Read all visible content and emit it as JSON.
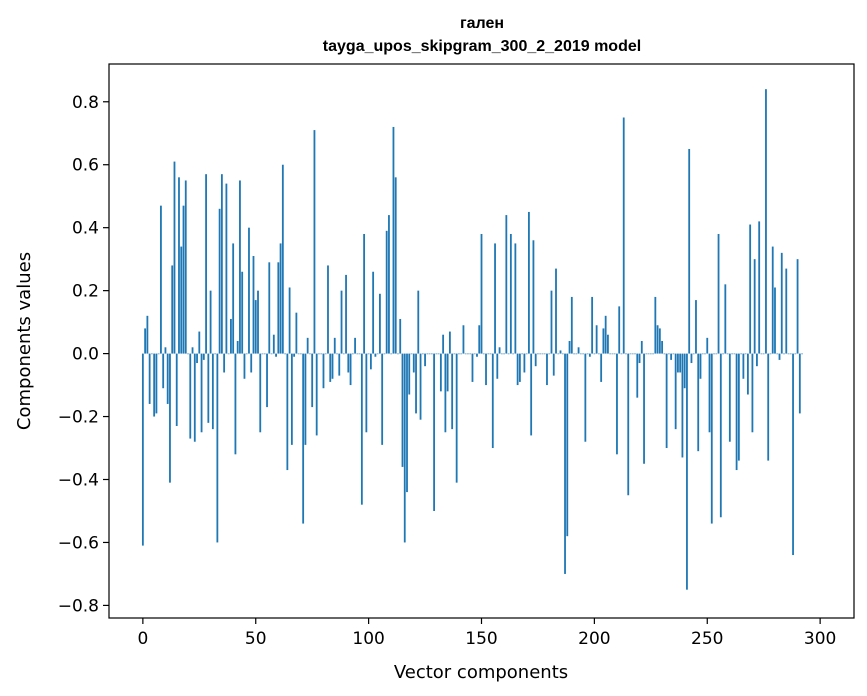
{
  "chart_data": {
    "type": "bar",
    "title": "гален",
    "subtitle": "tayga_upos_skipgram_300_2_2019 model",
    "xlabel": "Vector components",
    "ylabel": "Components values",
    "xlim": [
      -15,
      315
    ],
    "ylim": [
      -0.84,
      0.92
    ],
    "x_ticks": [
      0,
      50,
      100,
      150,
      200,
      250,
      300
    ],
    "y_ticks": [
      -0.8,
      -0.6,
      -0.4,
      -0.2,
      0.0,
      0.2,
      0.4,
      0.6,
      0.8
    ],
    "y_tick_labels": [
      "−0.8",
      "−0.6",
      "−0.4",
      "−0.2",
      "0.0",
      "0.2",
      "0.4",
      "0.6",
      "0.8"
    ],
    "bar_color": "#1f77b4",
    "grid": false,
    "values": [
      -0.61,
      0.08,
      0.12,
      -0.16,
      0.0,
      -0.2,
      -0.19,
      0.0,
      0.47,
      -0.11,
      0.02,
      -0.16,
      -0.41,
      0.28,
      0.61,
      -0.23,
      0.56,
      0.34,
      0.47,
      0.55,
      0.0,
      -0.27,
      0.02,
      -0.28,
      -0.03,
      0.07,
      -0.25,
      -0.02,
      0.57,
      -0.22,
      0.2,
      -0.24,
      0.0,
      -0.6,
      0.46,
      0.57,
      -0.06,
      0.54,
      0.0,
      0.11,
      0.35,
      -0.32,
      0.04,
      0.55,
      0.26,
      -0.08,
      0.0,
      0.4,
      -0.06,
      0.31,
      0.17,
      0.2,
      -0.25,
      0.0,
      0.0,
      -0.17,
      0.29,
      0.0,
      0.06,
      -0.01,
      0.29,
      0.35,
      0.6,
      0.0,
      -0.37,
      0.21,
      -0.29,
      -0.01,
      0.13,
      0.0,
      0.0,
      -0.54,
      -0.29,
      0.05,
      0.0,
      -0.17,
      0.71,
      -0.26,
      0.0,
      0.0,
      -0.11,
      0.0,
      0.28,
      -0.09,
      -0.08,
      0.05,
      0.0,
      -0.07,
      0.2,
      0.0,
      0.25,
      -0.06,
      -0.1,
      0.0,
      0.05,
      0.0,
      0.0,
      -0.48,
      0.38,
      -0.25,
      0.0,
      -0.05,
      0.26,
      -0.01,
      0.0,
      0.19,
      -0.29,
      0.0,
      0.39,
      0.44,
      0.0,
      0.72,
      0.56,
      0.0,
      0.11,
      -0.36,
      -0.6,
      -0.44,
      -0.13,
      0.0,
      -0.06,
      -0.19,
      0.2,
      -0.21,
      0.0,
      -0.04,
      0.0,
      0.0,
      0.0,
      -0.5,
      0.0,
      0.0,
      -0.12,
      0.06,
      -0.25,
      -0.12,
      0.07,
      -0.24,
      0.0,
      -0.41,
      0.0,
      0.0,
      0.09,
      0.0,
      0.0,
      0.0,
      -0.09,
      0.0,
      -0.01,
      0.09,
      0.38,
      0.0,
      -0.1,
      0.0,
      0.0,
      -0.3,
      0.35,
      -0.08,
      0.02,
      0.0,
      0.0,
      0.44,
      0.0,
      0.38,
      0.0,
      0.35,
      -0.1,
      -0.09,
      0.0,
      -0.06,
      0.0,
      0.45,
      -0.26,
      0.36,
      -0.04,
      0.0,
      0.0,
      0.0,
      0.0,
      -0.1,
      0.0,
      0.2,
      -0.07,
      0.27,
      0.0,
      0.01,
      0.0,
      -0.7,
      -0.58,
      0.04,
      0.18,
      0.0,
      0.0,
      0.02,
      0.0,
      0.0,
      -0.28,
      0.0,
      -0.01,
      0.18,
      0.0,
      0.09,
      0.0,
      -0.09,
      0.08,
      0.12,
      0.06,
      0.0,
      0.0,
      0.0,
      -0.32,
      0.15,
      0.0,
      0.75,
      0.0,
      -0.45,
      0.0,
      0.0,
      0.0,
      -0.14,
      -0.03,
      0.04,
      -0.35,
      0.0,
      0.0,
      0.0,
      0.0,
      0.18,
      0.09,
      0.08,
      0.04,
      0.0,
      -0.3,
      0.0,
      -0.02,
      0.0,
      -0.24,
      -0.06,
      -0.06,
      -0.33,
      -0.11,
      -0.75,
      0.65,
      -0.03,
      0.0,
      0.17,
      -0.31,
      -0.08,
      0.0,
      0.0,
      0.05,
      -0.25,
      -0.54,
      0.0,
      0.0,
      0.38,
      -0.52,
      0.0,
      0.22,
      0.0,
      -0.28,
      0.0,
      0.0,
      -0.37,
      -0.34,
      0.0,
      -0.08,
      0.0,
      -0.13,
      0.41,
      -0.25,
      0.3,
      -0.04,
      0.42,
      0.0,
      0.0,
      0.84,
      -0.34,
      0.0,
      0.34,
      0.21,
      0.0,
      -0.02,
      0.32,
      0.0,
      0.27,
      0.0,
      0.0,
      -0.64,
      0.0,
      0.3,
      -0.19,
      0.0
    ]
  }
}
